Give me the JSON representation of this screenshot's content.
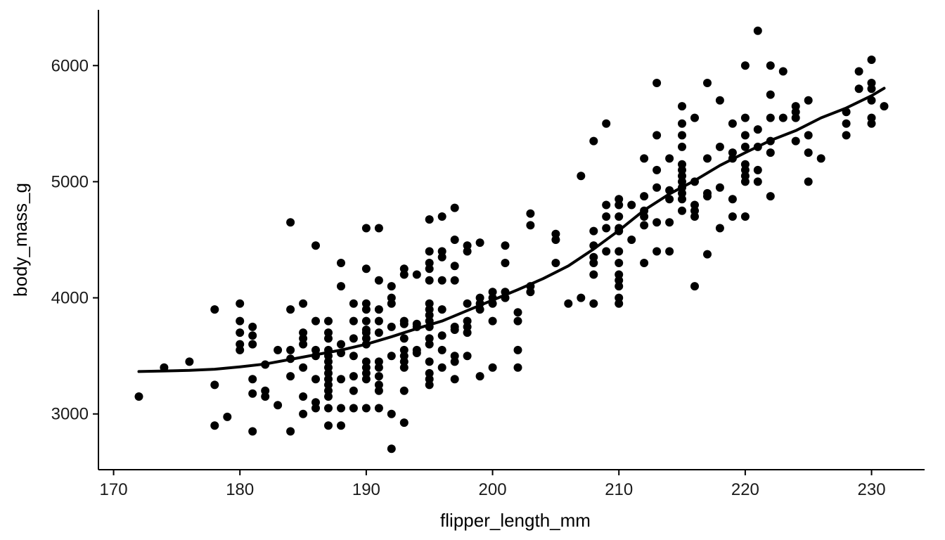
{
  "chart_data": {
    "type": "scatter",
    "title": "",
    "xlabel": "flipper_length_mm",
    "ylabel": "body_mass_g",
    "xlim": [
      168.8,
      234.2
    ],
    "ylim": [
      2520,
      6480
    ],
    "grid": false,
    "legend": "none",
    "x_ticks": [
      170,
      180,
      190,
      200,
      210,
      220,
      230
    ],
    "y_ticks": [
      3000,
      4000,
      5000,
      6000
    ],
    "point_color": "#000000",
    "line_color": "#000000",
    "points": [
      [
        172,
        3150
      ],
      [
        174,
        3400
      ],
      [
        176,
        3450
      ],
      [
        178,
        3900
      ],
      [
        178,
        3250
      ],
      [
        178,
        2900
      ],
      [
        179,
        2975
      ],
      [
        180,
        3950
      ],
      [
        180,
        3800
      ],
      [
        180,
        3700
      ],
      [
        180,
        3600
      ],
      [
        180,
        3550
      ],
      [
        181,
        3750
      ],
      [
        181,
        3675
      ],
      [
        181,
        3600
      ],
      [
        181,
        3300
      ],
      [
        181,
        3175
      ],
      [
        181,
        2850
      ],
      [
        182,
        3425
      ],
      [
        182,
        3200
      ],
      [
        182,
        3150
      ],
      [
        183,
        3550
      ],
      [
        183,
        3075
      ],
      [
        184,
        4650
      ],
      [
        184,
        3900
      ],
      [
        184,
        3550
      ],
      [
        184,
        3475
      ],
      [
        184,
        3325
      ],
      [
        184,
        2850
      ],
      [
        185,
        3950
      ],
      [
        185,
        3700
      ],
      [
        185,
        3650
      ],
      [
        185,
        3600
      ],
      [
        185,
        3400
      ],
      [
        185,
        3150
      ],
      [
        185,
        3000
      ],
      [
        186,
        4450
      ],
      [
        186,
        3800
      ],
      [
        186,
        3550
      ],
      [
        186,
        3500
      ],
      [
        186,
        3300
      ],
      [
        186,
        3100
      ],
      [
        186,
        3050
      ],
      [
        187,
        3800
      ],
      [
        187,
        3700
      ],
      [
        187,
        3650
      ],
      [
        187,
        3550
      ],
      [
        187,
        3500
      ],
      [
        187,
        3450
      ],
      [
        187,
        3400
      ],
      [
        187,
        3350
      ],
      [
        187,
        3300
      ],
      [
        187,
        3250
      ],
      [
        187,
        3200
      ],
      [
        187,
        3150
      ],
      [
        187,
        3050
      ],
      [
        187,
        2900
      ],
      [
        188,
        4300
      ],
      [
        188,
        4100
      ],
      [
        188,
        3600
      ],
      [
        188,
        3525
      ],
      [
        188,
        3300
      ],
      [
        188,
        3050
      ],
      [
        188,
        2900
      ],
      [
        189,
        3950
      ],
      [
        189,
        3800
      ],
      [
        189,
        3650
      ],
      [
        189,
        3500
      ],
      [
        189,
        3325
      ],
      [
        189,
        3200
      ],
      [
        189,
        3050
      ],
      [
        190,
        4600
      ],
      [
        190,
        4250
      ],
      [
        190,
        3950
      ],
      [
        190,
        3900
      ],
      [
        190,
        3800
      ],
      [
        190,
        3725
      ],
      [
        190,
        3700
      ],
      [
        190,
        3650
      ],
      [
        190,
        3600
      ],
      [
        190,
        3450
      ],
      [
        190,
        3400
      ],
      [
        190,
        3350
      ],
      [
        190,
        3300
      ],
      [
        190,
        3050
      ],
      [
        191,
        4600
      ],
      [
        191,
        4150
      ],
      [
        191,
        3900
      ],
      [
        191,
        3800
      ],
      [
        191,
        3700
      ],
      [
        191,
        3450
      ],
      [
        191,
        3400
      ],
      [
        191,
        3325
      ],
      [
        191,
        3250
      ],
      [
        191,
        3200
      ],
      [
        191,
        3050
      ],
      [
        192,
        4100
      ],
      [
        192,
        4000
      ],
      [
        192,
        3950
      ],
      [
        192,
        3750
      ],
      [
        192,
        3500
      ],
      [
        192,
        3000
      ],
      [
        192,
        2700
      ],
      [
        193,
        4250
      ],
      [
        193,
        4200
      ],
      [
        193,
        3800
      ],
      [
        193,
        3775
      ],
      [
        193,
        3650
      ],
      [
        193,
        3550
      ],
      [
        193,
        3500
      ],
      [
        193,
        3450
      ],
      [
        193,
        3400
      ],
      [
        193,
        3200
      ],
      [
        193,
        2925
      ],
      [
        194,
        4200
      ],
      [
        194,
        3775
      ],
      [
        194,
        3750
      ],
      [
        194,
        3550
      ],
      [
        194,
        3525
      ],
      [
        195,
        4675
      ],
      [
        195,
        4400
      ],
      [
        195,
        4300
      ],
      [
        195,
        4250
      ],
      [
        195,
        4150
      ],
      [
        195,
        3950
      ],
      [
        195,
        3900
      ],
      [
        195,
        3850
      ],
      [
        195,
        3800
      ],
      [
        195,
        3750
      ],
      [
        195,
        3650
      ],
      [
        195,
        3600
      ],
      [
        195,
        3450
      ],
      [
        195,
        3350
      ],
      [
        195,
        3300
      ],
      [
        195,
        3250
      ],
      [
        196,
        4700
      ],
      [
        196,
        4400
      ],
      [
        196,
        4350
      ],
      [
        196,
        4150
      ],
      [
        196,
        3900
      ],
      [
        196,
        3675
      ],
      [
        196,
        3550
      ],
      [
        196,
        3400
      ],
      [
        197,
        4775
      ],
      [
        197,
        4500
      ],
      [
        197,
        4275
      ],
      [
        197,
        4150
      ],
      [
        197,
        3750
      ],
      [
        197,
        3725
      ],
      [
        197,
        3500
      ],
      [
        197,
        3450
      ],
      [
        197,
        3300
      ],
      [
        198,
        4450
      ],
      [
        198,
        4400
      ],
      [
        198,
        3950
      ],
      [
        198,
        3800
      ],
      [
        198,
        3750
      ],
      [
        198,
        3700
      ],
      [
        198,
        3500
      ],
      [
        199,
        4475
      ],
      [
        199,
        4000
      ],
      [
        199,
        3950
      ],
      [
        199,
        3900
      ],
      [
        199,
        3325
      ],
      [
        200,
        4050
      ],
      [
        200,
        4000
      ],
      [
        200,
        3950
      ],
      [
        200,
        3800
      ],
      [
        200,
        3400
      ],
      [
        201,
        4450
      ],
      [
        201,
        4300
      ],
      [
        201,
        4050
      ],
      [
        201,
        4000
      ],
      [
        202,
        3875
      ],
      [
        202,
        3800
      ],
      [
        202,
        3550
      ],
      [
        202,
        3400
      ],
      [
        203,
        4725
      ],
      [
        203,
        4625
      ],
      [
        203,
        4100
      ],
      [
        203,
        4050
      ],
      [
        205,
        4550
      ],
      [
        205,
        4500
      ],
      [
        205,
        4300
      ],
      [
        206,
        3950
      ],
      [
        207,
        5050
      ],
      [
        207,
        4000
      ],
      [
        208,
        5350
      ],
      [
        208,
        4575
      ],
      [
        208,
        4450
      ],
      [
        208,
        4350
      ],
      [
        208,
        4300
      ],
      [
        208,
        4200
      ],
      [
        208,
        3950
      ],
      [
        209,
        5500
      ],
      [
        209,
        4800
      ],
      [
        209,
        4700
      ],
      [
        209,
        4600
      ],
      [
        209,
        4400
      ],
      [
        210,
        4850
      ],
      [
        210,
        4800
      ],
      [
        210,
        4700
      ],
      [
        210,
        4600
      ],
      [
        210,
        4575
      ],
      [
        210,
        4400
      ],
      [
        210,
        4300
      ],
      [
        210,
        4200
      ],
      [
        210,
        4150
      ],
      [
        210,
        4100
      ],
      [
        210,
        4000
      ],
      [
        210,
        3950
      ],
      [
        211,
        4800
      ],
      [
        211,
        4500
      ],
      [
        212,
        5200
      ],
      [
        212,
        4875
      ],
      [
        212,
        4750
      ],
      [
        212,
        4700
      ],
      [
        212,
        4625
      ],
      [
        212,
        4300
      ],
      [
        213,
        5850
      ],
      [
        213,
        5400
      ],
      [
        213,
        5100
      ],
      [
        213,
        4950
      ],
      [
        213,
        4650
      ],
      [
        213,
        4400
      ],
      [
        214,
        5200
      ],
      [
        214,
        4925
      ],
      [
        214,
        4850
      ],
      [
        214,
        4650
      ],
      [
        214,
        4400
      ],
      [
        215,
        5650
      ],
      [
        215,
        5500
      ],
      [
        215,
        5400
      ],
      [
        215,
        5300
      ],
      [
        215,
        5150
      ],
      [
        215,
        5100
      ],
      [
        215,
        5050
      ],
      [
        215,
        5000
      ],
      [
        215,
        4950
      ],
      [
        215,
        4900
      ],
      [
        215,
        4850
      ],
      [
        215,
        4750
      ],
      [
        216,
        5550
      ],
      [
        216,
        5000
      ],
      [
        216,
        4800
      ],
      [
        216,
        4750
      ],
      [
        216,
        4700
      ],
      [
        216,
        4100
      ],
      [
        217,
        5850
      ],
      [
        217,
        5200
      ],
      [
        217,
        4900
      ],
      [
        217,
        4875
      ],
      [
        217,
        4375
      ],
      [
        218,
        5700
      ],
      [
        218,
        5300
      ],
      [
        218,
        4950
      ],
      [
        218,
        4600
      ],
      [
        219,
        5500
      ],
      [
        219,
        5250
      ],
      [
        219,
        5200
      ],
      [
        219,
        4850
      ],
      [
        219,
        4700
      ],
      [
        220,
        6000
      ],
      [
        220,
        5550
      ],
      [
        220,
        5400
      ],
      [
        220,
        5300
      ],
      [
        220,
        5150
      ],
      [
        220,
        5100
      ],
      [
        220,
        5050
      ],
      [
        220,
        5000
      ],
      [
        220,
        4700
      ],
      [
        221,
        6300
      ],
      [
        221,
        5450
      ],
      [
        221,
        5300
      ],
      [
        221,
        5100
      ],
      [
        221,
        5000
      ],
      [
        222,
        6000
      ],
      [
        222,
        5750
      ],
      [
        222,
        5550
      ],
      [
        222,
        5350
      ],
      [
        222,
        5250
      ],
      [
        222,
        4875
      ],
      [
        223,
        5950
      ],
      [
        223,
        5550
      ],
      [
        224,
        5650
      ],
      [
        224,
        5600
      ],
      [
        224,
        5550
      ],
      [
        224,
        5350
      ],
      [
        225,
        5700
      ],
      [
        225,
        5400
      ],
      [
        225,
        5250
      ],
      [
        225,
        5000
      ],
      [
        226,
        5200
      ],
      [
        228,
        5600
      ],
      [
        228,
        5500
      ],
      [
        228,
        5400
      ],
      [
        229,
        5950
      ],
      [
        229,
        5800
      ],
      [
        230,
        6050
      ],
      [
        230,
        5850
      ],
      [
        230,
        5800
      ],
      [
        230,
        5700
      ],
      [
        230,
        5550
      ],
      [
        230,
        5500
      ],
      [
        231,
        5650
      ]
    ],
    "trend_line": {
      "x": [
        172,
        174,
        176,
        178,
        180,
        182,
        184,
        186,
        188,
        190,
        192,
        194,
        196,
        198,
        200,
        202,
        204,
        206,
        208,
        210,
        212,
        214,
        216,
        218,
        220,
        222,
        224,
        226,
        228,
        230,
        231
      ],
      "y": [
        3365,
        3370,
        3375,
        3385,
        3405,
        3430,
        3470,
        3510,
        3550,
        3600,
        3665,
        3735,
        3800,
        3890,
        3980,
        4070,
        4165,
        4275,
        4420,
        4580,
        4755,
        4895,
        5010,
        5140,
        5250,
        5355,
        5440,
        5550,
        5635,
        5740,
        5805
      ]
    }
  }
}
